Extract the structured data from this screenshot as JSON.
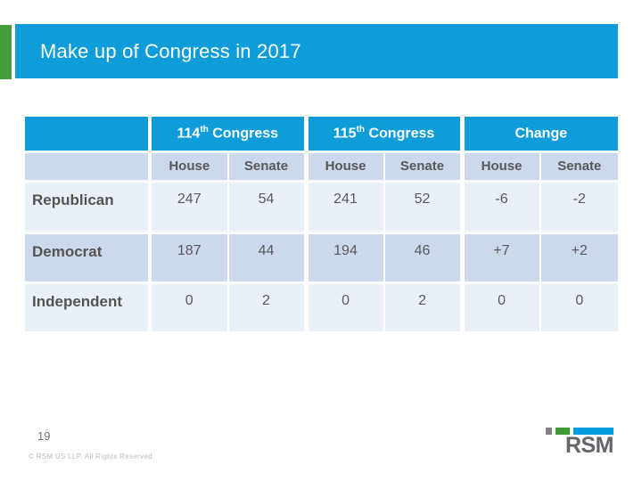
{
  "slide": {
    "title": "Make up of Congress in 2017",
    "page_number": "19",
    "copyright": "© RSM US LLP. All Rights Reserved.",
    "brand_colors": {
      "blue": "#0e9dd9",
      "green": "#459c3a",
      "logo_gray": "#808285",
      "logo_green": "#3f9c35",
      "logo_blue": "#009cde",
      "row_light": "#eaf0f8",
      "row_dark": "#ccd9ec"
    }
  },
  "table": {
    "groups": [
      {
        "prefix": "114",
        "sup": "th",
        "suffix": " Congress"
      },
      {
        "prefix": "115",
        "sup": "th",
        "suffix": " Congress"
      },
      {
        "prefix": "Change",
        "sup": "",
        "suffix": ""
      }
    ],
    "subheaders": [
      "House",
      "Senate",
      "House",
      "Senate",
      "House",
      "Senate"
    ],
    "rows": [
      {
        "label": "Republican",
        "values": [
          "247",
          "54",
          "241",
          "52",
          "-6",
          "-2"
        ]
      },
      {
        "label": "Democrat",
        "values": [
          "187",
          "44",
          "194",
          "46",
          "+7",
          "+2"
        ]
      },
      {
        "label": "Independent",
        "values": [
          "0",
          "2",
          "0",
          "2",
          "0",
          "0"
        ]
      }
    ]
  },
  "logo": {
    "text": "RSM"
  }
}
